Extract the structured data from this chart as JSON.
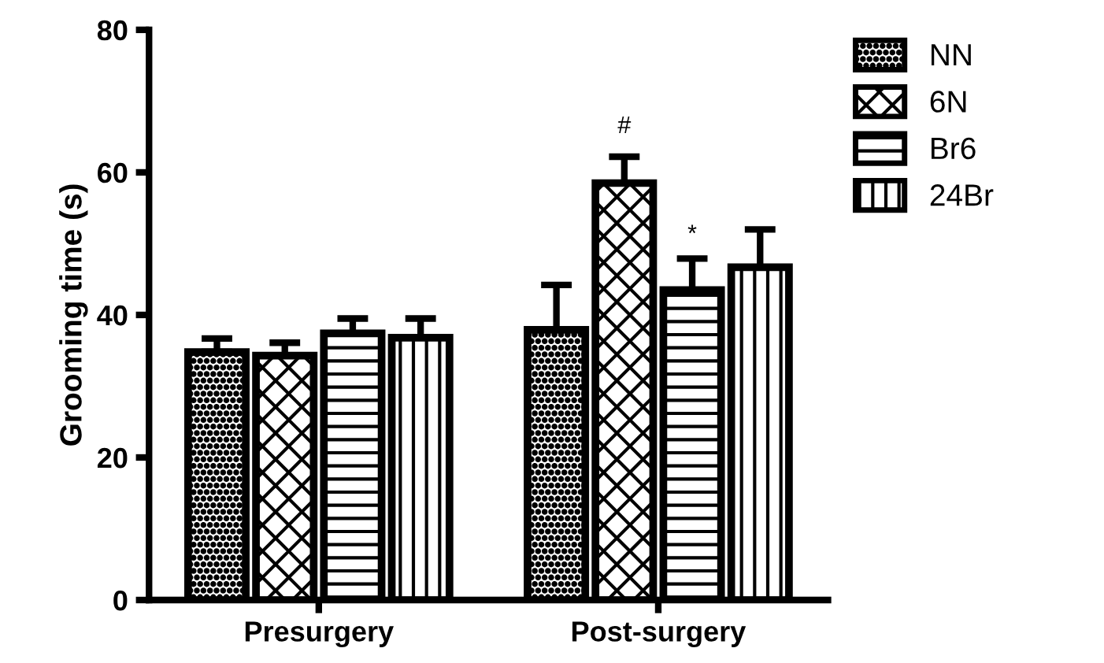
{
  "chart_data": {
    "type": "bar",
    "ylabel": "Grooming time (s)",
    "categories": [
      "Presurgery",
      "Post-surgery"
    ],
    "series": [
      {
        "name": "NN",
        "color": "#000000",
        "values": [
          34.8,
          37.9
        ],
        "errors": [
          [
            34.8,
            36.7
          ],
          [
            37.9,
            44.2
          ]
        ]
      },
      {
        "name": "6N",
        "color": "#000000",
        "values": [
          34.3,
          58.5
        ],
        "errors": [
          [
            34.3,
            36.1
          ],
          [
            58.5,
            62.2
          ]
        ]
      },
      {
        "name": "Br6",
        "color": "#000000",
        "values": [
          37.4,
          43.5
        ],
        "errors": [
          [
            37.4,
            39.5
          ],
          [
            43.5,
            47.9
          ]
        ]
      },
      {
        "name": "24Br",
        "color": "#000000",
        "values": [
          36.8,
          46.7
        ],
        "errors": [
          [
            36.8,
            39.5
          ],
          [
            46.7,
            52.0
          ]
        ]
      }
    ],
    "annotations": [
      "#",
      "*"
    ],
    "ylim": [
      0,
      80
    ],
    "yticks": [
      0,
      20,
      40,
      60,
      80
    ],
    "grid": false,
    "legend": "top right"
  }
}
